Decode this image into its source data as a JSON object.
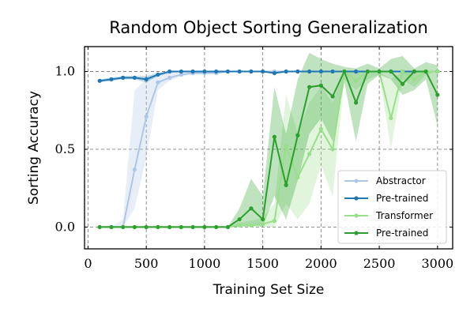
{
  "chart_data": {
    "type": "line",
    "title": "Random Object Sorting Generalization",
    "xlabel": "Training Set Size",
    "ylabel": "Sorting Accuracy",
    "xlim": [
      -30,
      3130
    ],
    "ylim": [
      -0.14,
      1.16
    ],
    "xticks": [
      0,
      500,
      1000,
      1500,
      2000,
      2500,
      3000
    ],
    "yticks": [
      0.0,
      0.5,
      1.0
    ],
    "xtick_labels": [
      "0",
      "500",
      "1000",
      "1500",
      "2000",
      "2500",
      "3000"
    ],
    "ytick_labels": [
      "0.0",
      "0.5",
      "1.0"
    ],
    "grid": true,
    "legend_position": "lower-right",
    "x": [
      100,
      200,
      300,
      400,
      500,
      600,
      700,
      800,
      900,
      1000,
      1100,
      1200,
      1300,
      1400,
      1500,
      1600,
      1700,
      1800,
      1900,
      2000,
      2100,
      2200,
      2300,
      2400,
      2500,
      2600,
      2700,
      2800,
      2900,
      3000
    ],
    "series": [
      {
        "name": "Abstractor",
        "color": "#aec7e8",
        "values": [
          0.0,
          0.0,
          0.0,
          0.37,
          0.71,
          0.93,
          0.96,
          0.98,
          0.99,
          0.99,
          0.99,
          1.0,
          1.0,
          1.0,
          1.0,
          1.0,
          1.0,
          1.0,
          1.0,
          1.0,
          1.0,
          1.0,
          1.0,
          1.0,
          1.0,
          1.0,
          1.0,
          1.0,
          1.0,
          1.0
        ],
        "lower": [
          0.0,
          0.0,
          0.0,
          0.12,
          0.45,
          0.88,
          0.94,
          0.97,
          0.98,
          0.98,
          0.99,
          1.0,
          1.0,
          1.0,
          1.0,
          1.0,
          1.0,
          1.0,
          1.0,
          1.0,
          1.0,
          1.0,
          1.0,
          1.0,
          1.0,
          1.0,
          1.0,
          1.0,
          1.0,
          1.0
        ],
        "upper": [
          0.0,
          0.0,
          0.05,
          0.88,
          0.95,
          0.98,
          0.99,
          1.0,
          1.0,
          1.0,
          1.0,
          1.0,
          1.0,
          1.0,
          1.0,
          1.0,
          1.0,
          1.0,
          1.0,
          1.0,
          1.0,
          1.0,
          1.0,
          1.0,
          1.0,
          1.0,
          1.0,
          1.0,
          1.0,
          1.0
        ]
      },
      {
        "name": "Pre-trained",
        "color": "#1f77b4",
        "values": [
          0.94,
          0.95,
          0.96,
          0.96,
          0.95,
          0.98,
          1.0,
          1.0,
          1.0,
          1.0,
          1.0,
          1.0,
          1.0,
          1.0,
          1.0,
          0.99,
          1.0,
          1.0,
          1.0,
          1.0,
          1.0,
          1.0,
          1.0,
          1.0,
          1.0,
          1.0,
          1.0,
          1.0,
          1.0,
          1.0
        ],
        "lower": [
          0.93,
          0.94,
          0.95,
          0.95,
          0.93,
          0.97,
          0.99,
          1.0,
          1.0,
          1.0,
          1.0,
          1.0,
          1.0,
          1.0,
          1.0,
          0.99,
          1.0,
          1.0,
          1.0,
          1.0,
          1.0,
          1.0,
          1.0,
          1.0,
          1.0,
          1.0,
          1.0,
          1.0,
          1.0,
          1.0
        ],
        "upper": [
          0.95,
          0.96,
          0.97,
          0.97,
          0.97,
          0.99,
          1.0,
          1.0,
          1.0,
          1.0,
          1.0,
          1.0,
          1.0,
          1.0,
          1.0,
          1.0,
          1.0,
          1.0,
          1.0,
          1.0,
          1.0,
          1.0,
          1.0,
          1.0,
          1.0,
          1.0,
          1.0,
          1.0,
          1.0,
          1.0
        ]
      },
      {
        "name": "Transformer",
        "color": "#98df8a",
        "values": [
          0.0,
          0.0,
          0.0,
          0.0,
          0.0,
          0.0,
          0.0,
          0.0,
          0.0,
          0.0,
          0.0,
          0.0,
          0.01,
          0.01,
          0.02,
          0.04,
          0.52,
          0.32,
          0.47,
          0.63,
          0.5,
          1.0,
          0.94,
          1.0,
          1.0,
          0.7,
          1.0,
          0.95,
          1.0,
          1.0
        ],
        "lower": [
          0.0,
          0.0,
          0.0,
          0.0,
          0.0,
          0.0,
          0.0,
          0.0,
          0.0,
          0.0,
          0.0,
          0.0,
          0.0,
          0.0,
          0.0,
          0.0,
          0.15,
          0.05,
          0.15,
          0.4,
          0.2,
          0.95,
          0.88,
          0.95,
          0.98,
          0.5,
          0.95,
          0.9,
          0.98,
          1.0
        ],
        "upper": [
          0.0,
          0.0,
          0.0,
          0.0,
          0.0,
          0.0,
          0.0,
          0.0,
          0.0,
          0.0,
          0.0,
          0.0,
          0.03,
          0.04,
          0.06,
          0.15,
          0.85,
          0.6,
          0.8,
          0.9,
          0.8,
          1.0,
          1.0,
          1.0,
          1.0,
          0.95,
          1.0,
          1.0,
          1.0,
          1.0
        ]
      },
      {
        "name": "Pre-trained",
        "color": "#2ca02c",
        "values": [
          0.0,
          0.0,
          0.0,
          0.0,
          0.0,
          0.0,
          0.0,
          0.0,
          0.0,
          0.0,
          0.0,
          0.0,
          0.05,
          0.12,
          0.05,
          0.58,
          0.27,
          0.59,
          0.9,
          0.91,
          0.84,
          1.0,
          0.8,
          1.0,
          1.0,
          1.0,
          0.92,
          1.0,
          1.0,
          0.85
        ],
        "lower": [
          0.0,
          0.0,
          0.0,
          0.0,
          0.0,
          0.0,
          0.0,
          0.0,
          0.0,
          0.0,
          0.0,
          0.0,
          0.0,
          0.02,
          0.0,
          0.2,
          0.05,
          0.3,
          0.6,
          0.7,
          0.55,
          0.93,
          0.55,
          0.92,
          0.98,
          0.95,
          0.85,
          0.88,
          0.95,
          0.65
        ],
        "upper": [
          0.0,
          0.0,
          0.0,
          0.0,
          0.0,
          0.0,
          0.0,
          0.0,
          0.0,
          0.0,
          0.0,
          0.0,
          0.12,
          0.31,
          0.2,
          0.9,
          0.6,
          0.95,
          1.12,
          1.08,
          1.05,
          1.03,
          1.02,
          1.05,
          1.02,
          1.08,
          1.1,
          1.02,
          1.06,
          1.04
        ]
      }
    ]
  }
}
